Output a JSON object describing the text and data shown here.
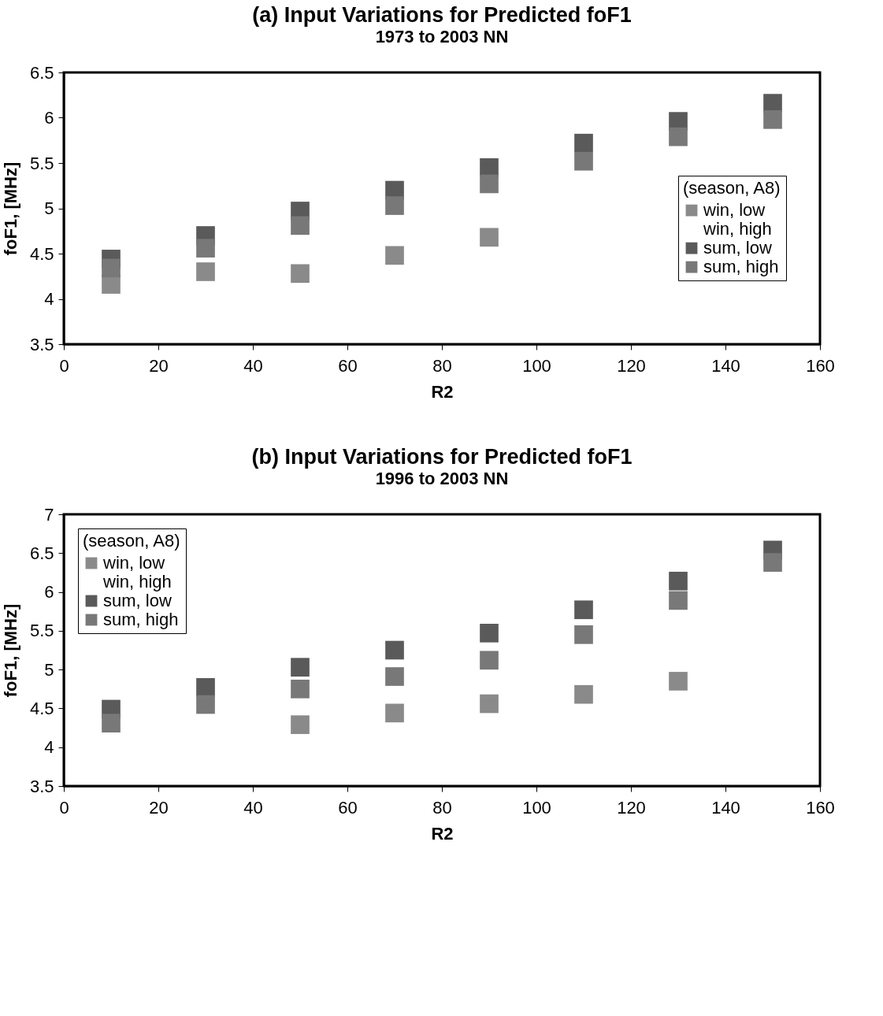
{
  "chart_data": [
    {
      "type": "scatter",
      "title": "(a) Input Variations for Predicted foF1",
      "subtitle": "1973 to 2003 NN",
      "xlabel": "R2",
      "ylabel": "foF1, [MHz]",
      "legend_title": "(season, A8)",
      "legend": "right",
      "marker": "square",
      "grid": false,
      "x": [
        10,
        30,
        50,
        70,
        90,
        110,
        130,
        150
      ],
      "xlim": [
        0,
        160
      ],
      "xticks": [
        0,
        20,
        40,
        60,
        80,
        100,
        120,
        140,
        160
      ],
      "ylim": [
        3.5,
        6.5
      ],
      "yticks": [
        3.5,
        4,
        4.5,
        5,
        5.5,
        6,
        6.5
      ],
      "series": [
        {
          "name": "win, low",
          "color": "#8a8a8a",
          "values": [
            4.16,
            4.3,
            4.28,
            4.48,
            4.68,
            null,
            null,
            null
          ]
        },
        {
          "name": "win, high",
          "values": [
            null,
            null,
            null,
            null,
            null,
            null,
            null,
            null
          ]
        },
        {
          "name": "sum, low",
          "color": "#5a5a5a",
          "values": [
            4.44,
            4.7,
            4.97,
            5.2,
            5.45,
            5.72,
            5.96,
            6.16
          ]
        },
        {
          "name": "sum, high",
          "color": "#787878",
          "values": [
            4.34,
            4.56,
            4.81,
            5.03,
            5.27,
            5.52,
            5.79,
            5.98
          ]
        }
      ]
    },
    {
      "type": "scatter",
      "title": "(b) Input Variations for Predicted foF1",
      "subtitle": "1996 to 2003 NN",
      "xlabel": "R2",
      "ylabel": "foF1, [MHz]",
      "legend_title": "(season, A8)",
      "legend": "top left",
      "marker": "square",
      "grid": false,
      "x": [
        10,
        30,
        50,
        70,
        90,
        110,
        130,
        150
      ],
      "xlim": [
        0,
        160
      ],
      "xticks": [
        0,
        20,
        40,
        60,
        80,
        100,
        120,
        140,
        160
      ],
      "ylim": [
        3.5,
        7
      ],
      "yticks": [
        3.5,
        4,
        4.5,
        5,
        5.5,
        6,
        6.5,
        7
      ],
      "series": [
        {
          "name": "win, low",
          "color": "#8a8a8a",
          "values": [
            null,
            null,
            4.29,
            4.44,
            4.56,
            4.68,
            4.85,
            null
          ]
        },
        {
          "name": "win, high",
          "values": [
            null,
            null,
            null,
            null,
            null,
            null,
            null,
            null
          ]
        },
        {
          "name": "sum, low",
          "color": "#5a5a5a",
          "values": [
            4.49,
            4.77,
            5.03,
            5.25,
            5.47,
            5.77,
            6.14,
            6.54
          ]
        },
        {
          "name": "sum, high",
          "color": "#787878",
          "values": [
            4.31,
            4.55,
            4.75,
            4.91,
            5.12,
            5.45,
            5.89,
            6.38
          ]
        }
      ]
    }
  ]
}
